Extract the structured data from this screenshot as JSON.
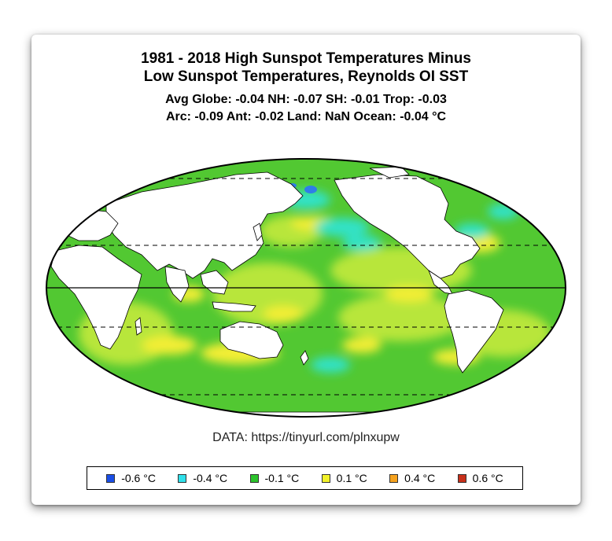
{
  "header": {
    "title_line1": "1981 - 2018 High Sunspot Temperatures Minus",
    "title_line2": "Low Sunspot Temperatures, Reynolds OI SST",
    "stats_line1": "Avg Globe: -0.04  NH: -0.07  SH: -0.01  Trop: -0.03",
    "stats_line2": "Arc: -0.09  Ant: -0.02  Land: NaN Ocean: -0.04 °C"
  },
  "source": "DATA: https://tinyurl.com/plnxupw",
  "legend": {
    "items": [
      {
        "label": "-0.6 °C",
        "color": "#1a4ee6"
      },
      {
        "label": "-0.4 °C",
        "color": "#2fe0ea"
      },
      {
        "label": "-0.1 °C",
        "color": "#2cc32c"
      },
      {
        "label": "0.1 °C",
        "color": "#f2f22a"
      },
      {
        "label": "0.4 °C",
        "color": "#f5a21e"
      },
      {
        "label": "0.6 °C",
        "color": "#c8301a"
      }
    ]
  },
  "map_colors": {
    "ocean_base": "#52c832",
    "ocean_light": "#b8e63a",
    "warm": "#f3ee35",
    "warm_strong": "#f5c02a",
    "cool": "#30e2c6",
    "cool_strong": "#2f7de8",
    "land": "#ffffff"
  }
}
